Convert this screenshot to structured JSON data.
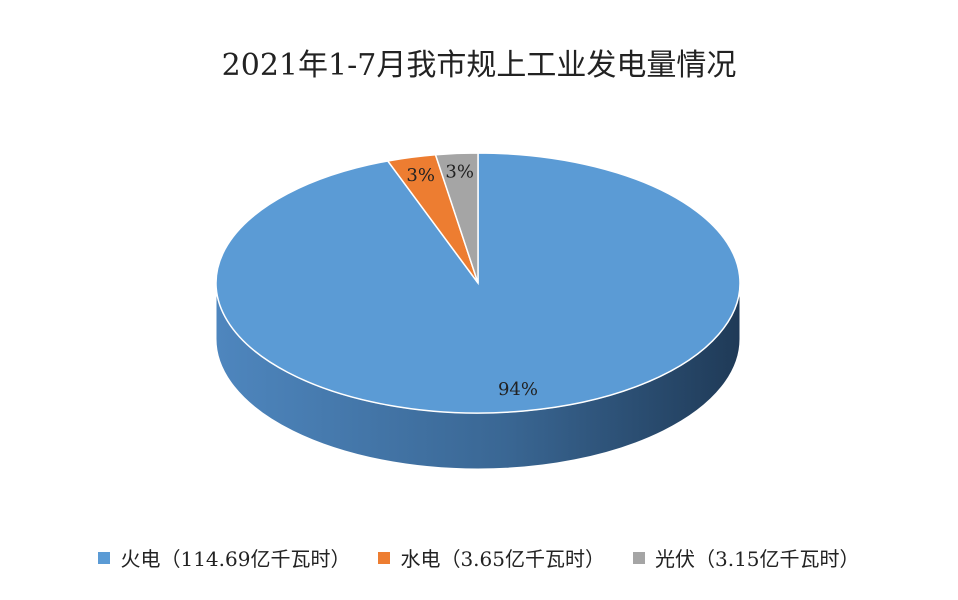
{
  "chart_data": {
    "type": "pie",
    "style": "3d",
    "title": "2021年1-7月我市规上工业发电量情况",
    "legend_position": "bottom",
    "categories": [
      "火电",
      "水电",
      "光伏"
    ],
    "values": [
      114.69,
      3.65,
      3.15
    ],
    "data_labels": [
      "94%",
      "3%",
      "3%"
    ],
    "legend_labels": [
      "火电（114.69亿千瓦时）",
      "水电（3.65亿千瓦时）",
      "光伏（3.15亿千瓦时）"
    ],
    "colors": [
      "#5B9BD5",
      "#ED7D31",
      "#A5A5A5"
    ],
    "unit": "亿千瓦时"
  }
}
